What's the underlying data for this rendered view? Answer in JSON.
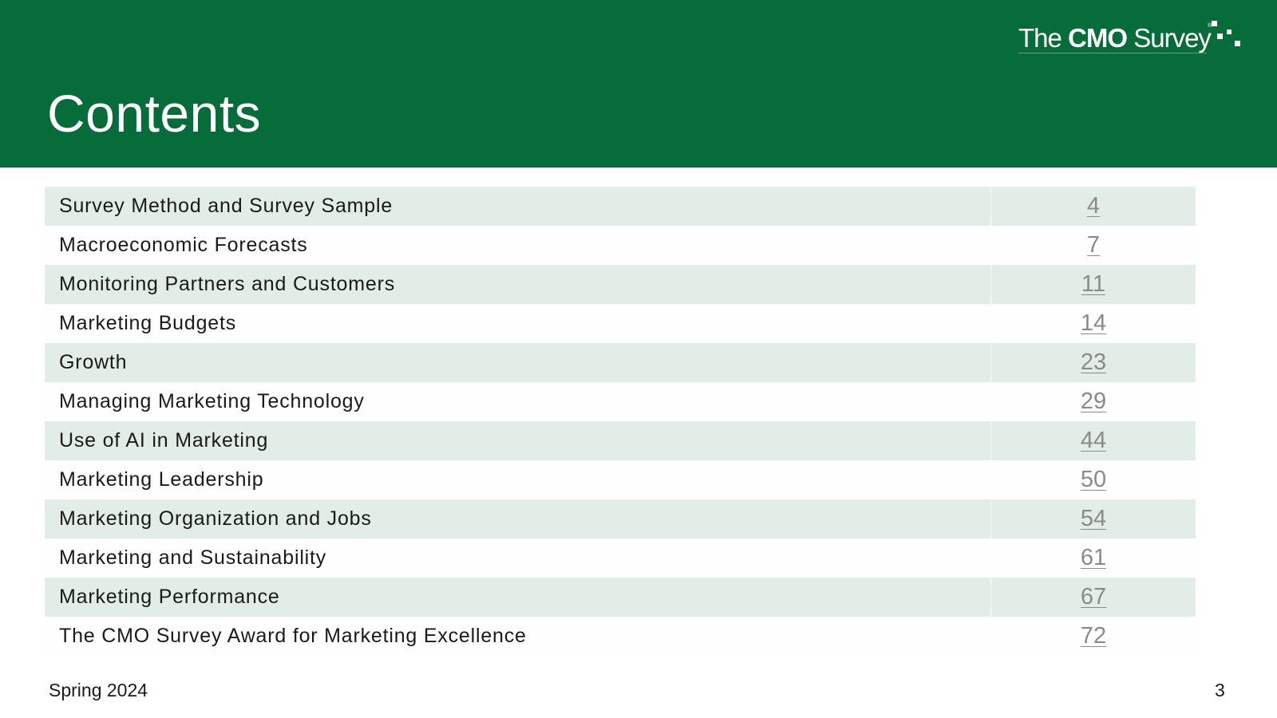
{
  "header": {
    "title": "Contents",
    "logo": {
      "prefix": "The ",
      "bold": "CMO",
      "suffix": " Survey",
      "registered": "®"
    }
  },
  "toc": [
    {
      "title": "Survey Method and Survey Sample",
      "page": "4"
    },
    {
      "title": "Macroeconomic Forecasts",
      "page": "7"
    },
    {
      "title": "Monitoring Partners and Customers",
      "page": "11"
    },
    {
      "title": "Marketing Budgets",
      "page": "14"
    },
    {
      "title": "Growth",
      "page": "23"
    },
    {
      "title": "Managing Marketing Technology",
      "page": "29"
    },
    {
      "title": "Use of AI in Marketing",
      "page": "44"
    },
    {
      "title": "Marketing Leadership",
      "page": "50"
    },
    {
      "title": "Marketing Organization and Jobs",
      "page": "54"
    },
    {
      "title": "Marketing and Sustainability",
      "page": "61"
    },
    {
      "title": "Marketing Performance",
      "page": "67"
    },
    {
      "title": "The CMO Survey Award for Marketing Excellence",
      "page": "72"
    }
  ],
  "footer": {
    "edition": "Spring 2024",
    "page_number": "3"
  },
  "colors": {
    "header_green": "#066d3a",
    "row_shade": "#e3ede7",
    "link_gray": "#8a8a8a"
  }
}
